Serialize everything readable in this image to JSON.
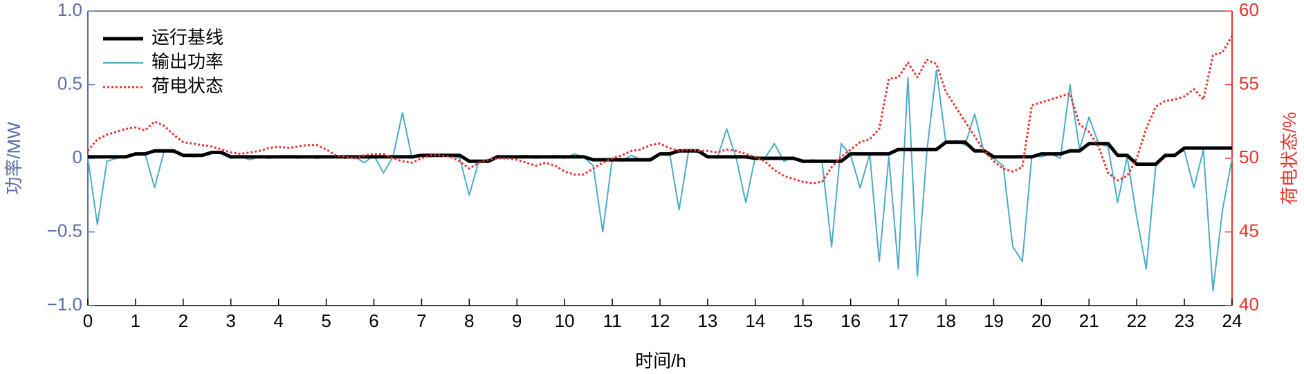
{
  "chart_data": {
    "type": "line",
    "xlabel": "时间/h",
    "ylabel": "功率/MW",
    "y2label": "荷电状态/%",
    "x": [
      0,
      0.2,
      0.4,
      0.6,
      0.8,
      1,
      1.2,
      1.4,
      1.6,
      1.8,
      2,
      2.2,
      2.4,
      2.6,
      2.8,
      3,
      3.2,
      3.4,
      3.6,
      3.8,
      4,
      4.2,
      4.4,
      4.6,
      4.8,
      5,
      5.2,
      5.4,
      5.6,
      5.8,
      6,
      6.2,
      6.4,
      6.6,
      6.8,
      7,
      7.2,
      7.4,
      7.6,
      7.8,
      8,
      8.2,
      8.4,
      8.6,
      8.8,
      9,
      9.2,
      9.4,
      9.6,
      9.8,
      10,
      10.2,
      10.4,
      10.6,
      10.8,
      11,
      11.2,
      11.4,
      11.6,
      11.8,
      12,
      12.2,
      12.4,
      12.6,
      12.8,
      13,
      13.2,
      13.4,
      13.6,
      13.8,
      14,
      14.2,
      14.4,
      14.6,
      14.8,
      15,
      15.2,
      15.4,
      15.6,
      15.8,
      16,
      16.2,
      16.4,
      16.6,
      16.8,
      17,
      17.2,
      17.4,
      17.6,
      17.8,
      18,
      18.2,
      18.4,
      18.6,
      18.8,
      19,
      19.2,
      19.4,
      19.6,
      19.8,
      20,
      20.2,
      20.4,
      20.6,
      20.8,
      21,
      21.2,
      21.4,
      21.6,
      21.8,
      22,
      22.2,
      22.4,
      22.6,
      22.8,
      23,
      23.2,
      23.4,
      23.6,
      23.8,
      24
    ],
    "series": [
      {
        "name": "运行基线",
        "color": "#000000",
        "values": [
          0.01,
          0.01,
          0.01,
          0.01,
          0.01,
          0.03,
          0.03,
          0.05,
          0.05,
          0.05,
          0.02,
          0.02,
          0.02,
          0.04,
          0.04,
          0.01,
          0.01,
          0.01,
          0.01,
          0.01,
          0.01,
          0.01,
          0.01,
          0.01,
          0.01,
          0.01,
          0.01,
          0.01,
          0.01,
          0.01,
          0.01,
          0.01,
          0.01,
          0.01,
          0.01,
          0.02,
          0.02,
          0.02,
          0.02,
          0.02,
          -0.02,
          -0.02,
          -0.02,
          0.01,
          0.01,
          0.01,
          0.01,
          0.01,
          0.01,
          0.01,
          0.01,
          0.01,
          0.01,
          -0.01,
          -0.01,
          -0.01,
          -0.01,
          -0.01,
          -0.01,
          -0.01,
          0.03,
          0.03,
          0.05,
          0.05,
          0.05,
          0.01,
          0.01,
          0.01,
          0.01,
          0.01,
          0,
          0,
          0,
          0,
          0,
          -0.02,
          -0.02,
          -0.02,
          -0.02,
          -0.02,
          0.03,
          0.03,
          0.03,
          0.03,
          0.03,
          0.06,
          0.06,
          0.06,
          0.06,
          0.06,
          0.11,
          0.11,
          0.11,
          0.05,
          0.05,
          0.01,
          0.01,
          0.01,
          0.01,
          0.01,
          0.03,
          0.03,
          0.03,
          0.05,
          0.05,
          0.1,
          0.1,
          0.1,
          0.02,
          0.02,
          -0.04,
          -0.04,
          -0.04,
          0.02,
          0.02,
          0.07,
          0.07,
          0.07,
          0.07,
          0.07,
          0.07
        ]
      },
      {
        "name": "输出功率",
        "color": "#4bacc6",
        "values": [
          0,
          -0.45,
          -0.02,
          0,
          0.01,
          0.02,
          0.03,
          -0.2,
          0.05,
          0.04,
          0.02,
          0.01,
          0.02,
          0.04,
          0.03,
          0,
          0.01,
          -0.01,
          0.01,
          0,
          0.01,
          0.02,
          0,
          0.01,
          0,
          0.01,
          0.02,
          0,
          0.01,
          -0.03,
          0.02,
          -0.1,
          0.01,
          0.31,
          0,
          0.02,
          0.01,
          0.03,
          0.02,
          0,
          -0.25,
          -0.02,
          -0.01,
          0.02,
          0,
          0.01,
          0.02,
          0,
          0.01,
          0.02,
          0,
          0.03,
          0.01,
          -0.05,
          -0.5,
          0,
          -0.02,
          0.02,
          -0.01,
          0,
          0.03,
          0.04,
          -0.35,
          0.05,
          0.04,
          0.02,
          0,
          0.2,
          0,
          -0.3,
          0.01,
          0,
          0.1,
          -0.02,
          0.01,
          -0.03,
          -0.01,
          -0.02,
          -0.6,
          0.1,
          0.02,
          -0.2,
          0.03,
          -0.7,
          0.01,
          -0.75,
          0.55,
          -0.8,
          0.05,
          0.6,
          0.1,
          0.12,
          0.09,
          0.3,
          0.04,
          0,
          -0.05,
          -0.6,
          -0.7,
          0.02,
          0.01,
          0.03,
          0,
          0.5,
          0.06,
          0.28,
          0.1,
          0.08,
          -0.3,
          0.01,
          -0.4,
          -0.75,
          -0.05,
          0.01,
          0.03,
          0.05,
          -0.2,
          0.06,
          -0.9,
          -0.35,
          0
        ]
      },
      {
        "name": "荷电状态",
        "color": "#e8332e",
        "axis": "y2",
        "dash": true,
        "values": [
          50.5,
          51.3,
          51.6,
          51.8,
          52.0,
          52.1,
          51.9,
          52.5,
          52.2,
          51.6,
          51.1,
          51.0,
          50.9,
          50.8,
          50.6,
          50.4,
          50.3,
          50.4,
          50.5,
          50.7,
          50.8,
          50.7,
          50.8,
          50.9,
          50.9,
          50.6,
          50.2,
          50.1,
          50.0,
          50.2,
          50.3,
          50.3,
          50.0,
          49.8,
          49.7,
          50.0,
          50.2,
          50.2,
          50.1,
          49.8,
          49.3,
          49.7,
          49.9,
          50.0,
          50.0,
          49.9,
          49.7,
          49.5,
          49.7,
          49.5,
          49.1,
          48.9,
          48.9,
          49.3,
          49.7,
          50.0,
          50.2,
          50.5,
          50.6,
          50.9,
          51.0,
          50.7,
          50.5,
          50.6,
          50.5,
          50.5,
          50.4,
          50.6,
          50.5,
          50.3,
          50.1,
          49.8,
          49.2,
          48.8,
          48.6,
          48.4,
          48.3,
          48.4,
          49.4,
          50.1,
          50.6,
          51.1,
          51.3,
          52.0,
          55.4,
          55.5,
          56.5,
          55.5,
          56.7,
          56.4,
          54.5,
          53.5,
          52.5,
          51.5,
          50.5,
          49.8,
          49.3,
          49.1,
          49.4,
          53.6,
          53.8,
          54.0,
          54.2,
          54.4,
          52.3,
          51.8,
          50.8,
          49.0,
          48.5,
          48.8,
          50.0,
          52.0,
          53.5,
          53.9,
          54.0,
          54.2,
          54.7,
          54.0,
          57.0,
          57.2,
          58.3
        ]
      }
    ],
    "xlim": [
      0,
      24
    ],
    "xticks": [
      0,
      1,
      2,
      3,
      4,
      5,
      6,
      7,
      8,
      9,
      10,
      11,
      12,
      13,
      14,
      15,
      16,
      17,
      18,
      19,
      20,
      21,
      22,
      23,
      24
    ],
    "ylim": [
      -1,
      1
    ],
    "yticks": [
      {
        "value": -1,
        "label": "−1.0"
      },
      {
        "value": -0.5,
        "label": "−0.5"
      },
      0,
      0.5,
      {
        "value": 1,
        "label": "1.0"
      }
    ],
    "y2lim": [
      40,
      60
    ],
    "y2ticks": [
      40,
      45,
      50,
      55,
      60
    ],
    "ycolor": "#5b6ea3",
    "y2color": "#e8332e",
    "legend": "upper left",
    "grid": false
  }
}
